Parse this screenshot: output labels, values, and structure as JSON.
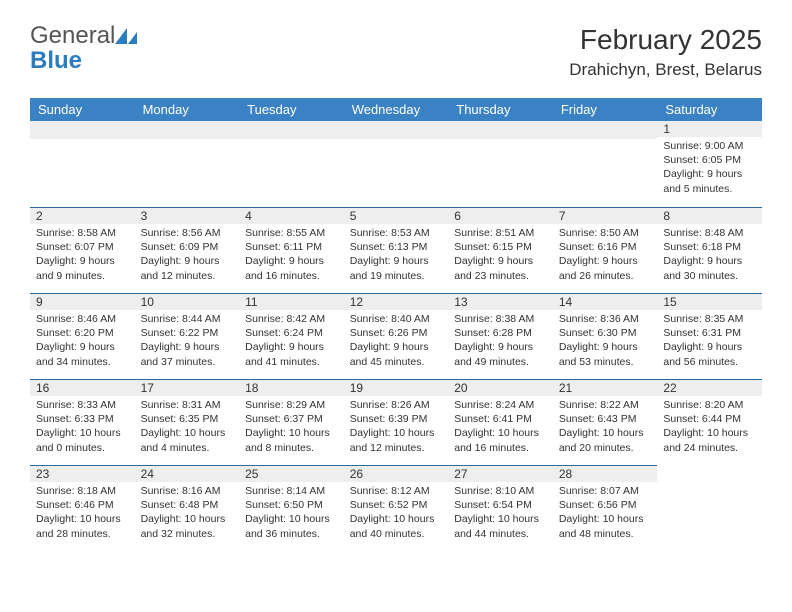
{
  "logo": {
    "text_gray": "General",
    "text_blue": "Blue",
    "icon_color": "#2b7cc0"
  },
  "header": {
    "month_title": "February 2025",
    "location": "Drahichyn, Brest, Belarus"
  },
  "colors": {
    "header_bg": "#3b82c4",
    "header_text": "#ffffff",
    "daybar_bg": "#eeeeee",
    "daybar_border": "#2b6aa2",
    "body_text": "#333333"
  },
  "weekdays": [
    "Sunday",
    "Monday",
    "Tuesday",
    "Wednesday",
    "Thursday",
    "Friday",
    "Saturday"
  ],
  "weeks": [
    [
      null,
      null,
      null,
      null,
      null,
      null,
      {
        "n": "1",
        "sunrise": "Sunrise: 9:00 AM",
        "sunset": "Sunset: 6:05 PM",
        "daylight": "Daylight: 9 hours and 5 minutes."
      }
    ],
    [
      {
        "n": "2",
        "sunrise": "Sunrise: 8:58 AM",
        "sunset": "Sunset: 6:07 PM",
        "daylight": "Daylight: 9 hours and 9 minutes."
      },
      {
        "n": "3",
        "sunrise": "Sunrise: 8:56 AM",
        "sunset": "Sunset: 6:09 PM",
        "daylight": "Daylight: 9 hours and 12 minutes."
      },
      {
        "n": "4",
        "sunrise": "Sunrise: 8:55 AM",
        "sunset": "Sunset: 6:11 PM",
        "daylight": "Daylight: 9 hours and 16 minutes."
      },
      {
        "n": "5",
        "sunrise": "Sunrise: 8:53 AM",
        "sunset": "Sunset: 6:13 PM",
        "daylight": "Daylight: 9 hours and 19 minutes."
      },
      {
        "n": "6",
        "sunrise": "Sunrise: 8:51 AM",
        "sunset": "Sunset: 6:15 PM",
        "daylight": "Daylight: 9 hours and 23 minutes."
      },
      {
        "n": "7",
        "sunrise": "Sunrise: 8:50 AM",
        "sunset": "Sunset: 6:16 PM",
        "daylight": "Daylight: 9 hours and 26 minutes."
      },
      {
        "n": "8",
        "sunrise": "Sunrise: 8:48 AM",
        "sunset": "Sunset: 6:18 PM",
        "daylight": "Daylight: 9 hours and 30 minutes."
      }
    ],
    [
      {
        "n": "9",
        "sunrise": "Sunrise: 8:46 AM",
        "sunset": "Sunset: 6:20 PM",
        "daylight": "Daylight: 9 hours and 34 minutes."
      },
      {
        "n": "10",
        "sunrise": "Sunrise: 8:44 AM",
        "sunset": "Sunset: 6:22 PM",
        "daylight": "Daylight: 9 hours and 37 minutes."
      },
      {
        "n": "11",
        "sunrise": "Sunrise: 8:42 AM",
        "sunset": "Sunset: 6:24 PM",
        "daylight": "Daylight: 9 hours and 41 minutes."
      },
      {
        "n": "12",
        "sunrise": "Sunrise: 8:40 AM",
        "sunset": "Sunset: 6:26 PM",
        "daylight": "Daylight: 9 hours and 45 minutes."
      },
      {
        "n": "13",
        "sunrise": "Sunrise: 8:38 AM",
        "sunset": "Sunset: 6:28 PM",
        "daylight": "Daylight: 9 hours and 49 minutes."
      },
      {
        "n": "14",
        "sunrise": "Sunrise: 8:36 AM",
        "sunset": "Sunset: 6:30 PM",
        "daylight": "Daylight: 9 hours and 53 minutes."
      },
      {
        "n": "15",
        "sunrise": "Sunrise: 8:35 AM",
        "sunset": "Sunset: 6:31 PM",
        "daylight": "Daylight: 9 hours and 56 minutes."
      }
    ],
    [
      {
        "n": "16",
        "sunrise": "Sunrise: 8:33 AM",
        "sunset": "Sunset: 6:33 PM",
        "daylight": "Daylight: 10 hours and 0 minutes."
      },
      {
        "n": "17",
        "sunrise": "Sunrise: 8:31 AM",
        "sunset": "Sunset: 6:35 PM",
        "daylight": "Daylight: 10 hours and 4 minutes."
      },
      {
        "n": "18",
        "sunrise": "Sunrise: 8:29 AM",
        "sunset": "Sunset: 6:37 PM",
        "daylight": "Daylight: 10 hours and 8 minutes."
      },
      {
        "n": "19",
        "sunrise": "Sunrise: 8:26 AM",
        "sunset": "Sunset: 6:39 PM",
        "daylight": "Daylight: 10 hours and 12 minutes."
      },
      {
        "n": "20",
        "sunrise": "Sunrise: 8:24 AM",
        "sunset": "Sunset: 6:41 PM",
        "daylight": "Daylight: 10 hours and 16 minutes."
      },
      {
        "n": "21",
        "sunrise": "Sunrise: 8:22 AM",
        "sunset": "Sunset: 6:43 PM",
        "daylight": "Daylight: 10 hours and 20 minutes."
      },
      {
        "n": "22",
        "sunrise": "Sunrise: 8:20 AM",
        "sunset": "Sunset: 6:44 PM",
        "daylight": "Daylight: 10 hours and 24 minutes."
      }
    ],
    [
      {
        "n": "23",
        "sunrise": "Sunrise: 8:18 AM",
        "sunset": "Sunset: 6:46 PM",
        "daylight": "Daylight: 10 hours and 28 minutes."
      },
      {
        "n": "24",
        "sunrise": "Sunrise: 8:16 AM",
        "sunset": "Sunset: 6:48 PM",
        "daylight": "Daylight: 10 hours and 32 minutes."
      },
      {
        "n": "25",
        "sunrise": "Sunrise: 8:14 AM",
        "sunset": "Sunset: 6:50 PM",
        "daylight": "Daylight: 10 hours and 36 minutes."
      },
      {
        "n": "26",
        "sunrise": "Sunrise: 8:12 AM",
        "sunset": "Sunset: 6:52 PM",
        "daylight": "Daylight: 10 hours and 40 minutes."
      },
      {
        "n": "27",
        "sunrise": "Sunrise: 8:10 AM",
        "sunset": "Sunset: 6:54 PM",
        "daylight": "Daylight: 10 hours and 44 minutes."
      },
      {
        "n": "28",
        "sunrise": "Sunrise: 8:07 AM",
        "sunset": "Sunset: 6:56 PM",
        "daylight": "Daylight: 10 hours and 48 minutes."
      },
      null
    ]
  ]
}
